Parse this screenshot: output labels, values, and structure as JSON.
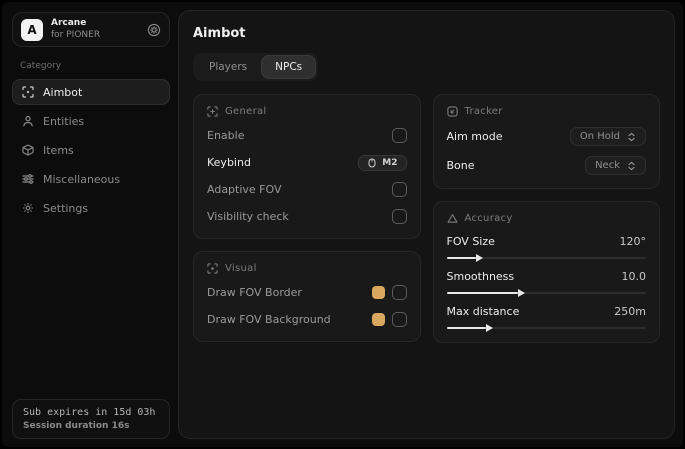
{
  "app": {
    "name": "Arcane",
    "subtitle": "for PIONER",
    "logo_letter": "A"
  },
  "sidebar": {
    "section_label": "Category",
    "items": [
      {
        "label": "Aimbot",
        "icon": "crosshair-icon",
        "active": true
      },
      {
        "label": "Entities",
        "icon": "person-icon",
        "active": false
      },
      {
        "label": "Items",
        "icon": "cube-icon",
        "active": false
      },
      {
        "label": "Miscellaneous",
        "icon": "sliders-icon",
        "active": false
      },
      {
        "label": "Settings",
        "icon": "gear-icon",
        "active": false
      }
    ],
    "footer": {
      "line1": "Sub expires in 15d 03h",
      "line2": "Session duration 16s"
    }
  },
  "main": {
    "title": "Aimbot",
    "tabs": [
      {
        "label": "Players",
        "active": false
      },
      {
        "label": "NPCs",
        "active": true
      }
    ],
    "cards": {
      "general": {
        "title": "General",
        "rows": [
          {
            "label": "Enable",
            "control": "checkbox",
            "checked": false
          },
          {
            "label": "Keybind",
            "control": "keybind",
            "value": "M2"
          },
          {
            "label": "Adaptive FOV",
            "control": "checkbox",
            "checked": false
          },
          {
            "label": "Visibility check",
            "control": "checkbox",
            "checked": false
          }
        ]
      },
      "visual": {
        "title": "Visual",
        "rows": [
          {
            "label": "Draw FOV Border",
            "control": "color+checkbox",
            "color": "#d9a85e",
            "checked": false
          },
          {
            "label": "Draw FOV Background",
            "control": "color+checkbox",
            "color": "#d9a85e",
            "checked": false
          }
        ]
      },
      "tracker": {
        "title": "Tracker",
        "rows": [
          {
            "label": "Aim mode",
            "control": "select",
            "value": "On Hold"
          },
          {
            "label": "Bone",
            "control": "select",
            "value": "Neck"
          }
        ]
      },
      "accuracy": {
        "title": "Accuracy",
        "rows": [
          {
            "label": "FOV Size",
            "value": "120°",
            "percent": 15
          },
          {
            "label": "Smoothness",
            "value": "10.0",
            "percent": 36
          },
          {
            "label": "Max distance",
            "value": "250m",
            "percent": 20
          }
        ]
      }
    }
  },
  "colors": {
    "accent_swatch": "#d9a85e",
    "slider_fill": "#e8e8e8",
    "card_bg": "#191919",
    "panel_bg": "#141414"
  }
}
